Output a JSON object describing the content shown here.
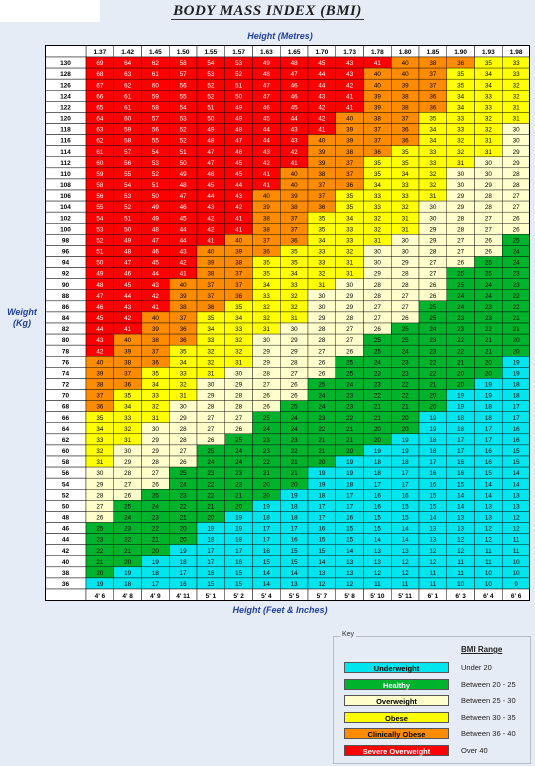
{
  "title": "BODY MASS INDEX (BMI)",
  "x_top_label": "Height (Metres)",
  "x_bottom_label": "Height (Feet & Inches)",
  "y_label_line1": "Weight",
  "y_label_line2": "(Kg)",
  "key": {
    "caption": "Key",
    "header": "BMI Range",
    "items": [
      {
        "label": "Underweight",
        "range": "Under 20",
        "color": "#00e5ee",
        "text_color": "#000000"
      },
      {
        "label": "Healthy",
        "range": "Between 20 - 25",
        "color": "#00b32d",
        "text_color": "#ffffff"
      },
      {
        "label": "Overweight",
        "range": "Between 25 - 30",
        "color": "#ffffcc",
        "text_color": "#000000"
      },
      {
        "label": "Obese",
        "range": "Between 30 - 35",
        "color": "#ffff00",
        "text_color": "#000000"
      },
      {
        "label": "Clinically Obese",
        "range": "Between 36 - 40",
        "color": "#ff8c00",
        "text_color": "#000000"
      },
      {
        "label": "Severe Overweight",
        "range": "Over 40",
        "color": "#ff0000",
        "text_color": "#ffffff"
      }
    ]
  },
  "chart_data": {
    "type": "heatmap",
    "title": "BODY MASS INDEX (BMI)",
    "xlabel_top": "Height (Metres)",
    "xlabel_bottom": "Height (Feet & Inches)",
    "ylabel": "Weight (Kg)",
    "heights_m": [
      "1.37",
      "1.42",
      "1.45",
      "1.50",
      "1.55",
      "1.57",
      "1.63",
      "1.65",
      "1.70",
      "1.73",
      "1.78",
      "1.80",
      "1.85",
      "1.90",
      "1.93",
      "1.98"
    ],
    "heights_ft": [
      "4' 6",
      "4' 8",
      "4' 9",
      "4' 11",
      "5' 1",
      "5' 2",
      "5' 4",
      "5' 5",
      "5' 7",
      "5' 8",
      "5' 10",
      "5' 11",
      "6' 1",
      "6' 3",
      "6' 4",
      "6' 6"
    ],
    "weights_kg": [
      130,
      128,
      126,
      124,
      122,
      120,
      118,
      116,
      114,
      112,
      110,
      108,
      106,
      104,
      102,
      100,
      98,
      96,
      94,
      92,
      90,
      88,
      86,
      84,
      82,
      80,
      78,
      76,
      74,
      72,
      70,
      68,
      66,
      64,
      62,
      60,
      58,
      56,
      54,
      52,
      50,
      48,
      46,
      44,
      42,
      40,
      38,
      36
    ],
    "values": [
      [
        69,
        64,
        62,
        58,
        54,
        53,
        49,
        48,
        45,
        43,
        41,
        40,
        38,
        36,
        35,
        33
      ],
      [
        68,
        63,
        61,
        57,
        53,
        52,
        48,
        47,
        44,
        43,
        40,
        40,
        37,
        35,
        34,
        33
      ],
      [
        67,
        62,
        60,
        56,
        52,
        51,
        47,
        46,
        44,
        42,
        40,
        39,
        37,
        35,
        34,
        32
      ],
      [
        66,
        61,
        59,
        55,
        52,
        50,
        47,
        46,
        43,
        41,
        39,
        38,
        36,
        34,
        33,
        32
      ],
      [
        65,
        61,
        58,
        54,
        51,
        49,
        46,
        45,
        42,
        41,
        39,
        38,
        36,
        34,
        33,
        31
      ],
      [
        64,
        60,
        57,
        53,
        50,
        49,
        45,
        44,
        42,
        40,
        38,
        37,
        35,
        33,
        32,
        31
      ],
      [
        63,
        59,
        56,
        52,
        49,
        48,
        44,
        43,
        41,
        39,
        37,
        36,
        34,
        33,
        32,
        30
      ],
      [
        62,
        58,
        55,
        52,
        48,
        47,
        44,
        43,
        40,
        39,
        37,
        36,
        34,
        32,
        31,
        30
      ],
      [
        61,
        57,
        54,
        51,
        47,
        46,
        43,
        42,
        39,
        38,
        36,
        35,
        33,
        32,
        31,
        29
      ],
      [
        60,
        56,
        53,
        50,
        47,
        45,
        42,
        41,
        39,
        37,
        35,
        35,
        33,
        31,
        30,
        29
      ],
      [
        59,
        55,
        52,
        49,
        46,
        45,
        41,
        40,
        38,
        37,
        35,
        34,
        32,
        30,
        30,
        28
      ],
      [
        58,
        54,
        51,
        48,
        45,
        44,
        41,
        40,
        37,
        36,
        34,
        33,
        32,
        30,
        29,
        28
      ],
      [
        56,
        53,
        50,
        47,
        44,
        43,
        40,
        39,
        37,
        35,
        33,
        33,
        31,
        29,
        28,
        27
      ],
      [
        55,
        52,
        49,
        46,
        43,
        42,
        39,
        38,
        36,
        35,
        33,
        32,
        30,
        29,
        28,
        27
      ],
      [
        54,
        51,
        49,
        45,
        42,
        41,
        38,
        37,
        35,
        34,
        32,
        31,
        30,
        28,
        27,
        26
      ],
      [
        53,
        50,
        48,
        44,
        42,
        41,
        38,
        37,
        35,
        33,
        32,
        31,
        29,
        28,
        27,
        26
      ],
      [
        52,
        49,
        47,
        44,
        41,
        40,
        37,
        36,
        34,
        33,
        31,
        30,
        29,
        27,
        26,
        25
      ],
      [
        51,
        48,
        46,
        43,
        40,
        39,
        36,
        35,
        33,
        32,
        30,
        30,
        28,
        27,
        26,
        24
      ],
      [
        50,
        47,
        45,
        42,
        39,
        38,
        35,
        35,
        33,
        31,
        30,
        29,
        27,
        26,
        25,
        24
      ],
      [
        49,
        46,
        44,
        41,
        38,
        37,
        35,
        34,
        32,
        31,
        29,
        28,
        27,
        25,
        25,
        23
      ],
      [
        48,
        45,
        43,
        40,
        37,
        37,
        34,
        33,
        31,
        30,
        28,
        28,
        26,
        25,
        24,
        23
      ],
      [
        47,
        44,
        42,
        39,
        37,
        36,
        33,
        32,
        30,
        29,
        28,
        27,
        26,
        24,
        24,
        22
      ],
      [
        46,
        43,
        41,
        38,
        36,
        35,
        32,
        32,
        30,
        29,
        27,
        27,
        25,
        24,
        23,
        22
      ],
      [
        45,
        42,
        40,
        37,
        35,
        34,
        32,
        31,
        29,
        28,
        27,
        26,
        25,
        23,
        23,
        21
      ],
      [
        44,
        41,
        39,
        36,
        34,
        33,
        31,
        30,
        28,
        27,
        26,
        25,
        24,
        23,
        22,
        21
      ],
      [
        43,
        40,
        38,
        36,
        33,
        32,
        30,
        29,
        28,
        27,
        25,
        25,
        23,
        22,
        21,
        20
      ],
      [
        42,
        39,
        37,
        35,
        32,
        32,
        29,
        29,
        27,
        26,
        25,
        24,
        23,
        22,
        21,
        20
      ],
      [
        40,
        38,
        36,
        34,
        32,
        31,
        29,
        28,
        26,
        25,
        24,
        23,
        22,
        21,
        20,
        19
      ],
      [
        39,
        37,
        35,
        33,
        31,
        30,
        28,
        27,
        26,
        25,
        23,
        23,
        22,
        20,
        20,
        19
      ],
      [
        38,
        36,
        34,
        32,
        30,
        29,
        27,
        26,
        25,
        24,
        23,
        22,
        21,
        20,
        19,
        18
      ],
      [
        37,
        35,
        33,
        31,
        29,
        28,
        26,
        26,
        24,
        23,
        22,
        22,
        20,
        19,
        19,
        18
      ],
      [
        36,
        34,
        32,
        30,
        28,
        28,
        26,
        25,
        24,
        23,
        21,
        21,
        20,
        19,
        18,
        17
      ],
      [
        35,
        33,
        31,
        29,
        27,
        27,
        25,
        24,
        23,
        22,
        21,
        20,
        19,
        18,
        18,
        17
      ],
      [
        34,
        32,
        30,
        28,
        27,
        26,
        24,
        24,
        22,
        21,
        20,
        20,
        19,
        18,
        17,
        16
      ],
      [
        33,
        31,
        29,
        28,
        26,
        25,
        23,
        23,
        21,
        21,
        20,
        19,
        18,
        17,
        17,
        16
      ],
      [
        32,
        30,
        29,
        27,
        25,
        24,
        23,
        22,
        21,
        20,
        19,
        19,
        18,
        17,
        16,
        15
      ],
      [
        31,
        29,
        28,
        26,
        24,
        24,
        22,
        21,
        20,
        19,
        18,
        18,
        17,
        16,
        16,
        15
      ],
      [
        30,
        28,
        27,
        25,
        23,
        23,
        21,
        21,
        19,
        19,
        18,
        17,
        16,
        16,
        15,
        14
      ],
      [
        29,
        27,
        26,
        24,
        22,
        22,
        20,
        20,
        19,
        18,
        17,
        17,
        16,
        15,
        14,
        14
      ],
      [
        28,
        26,
        25,
        23,
        22,
        21,
        20,
        19,
        18,
        17,
        16,
        16,
        15,
        14,
        14,
        13
      ],
      [
        27,
        25,
        24,
        22,
        21,
        20,
        19,
        18,
        17,
        17,
        16,
        15,
        15,
        14,
        13,
        13
      ],
      [
        26,
        24,
        23,
        21,
        20,
        19,
        18,
        18,
        17,
        16,
        15,
        15,
        14,
        13,
        13,
        12
      ],
      [
        25,
        23,
        22,
        20,
        19,
        19,
        17,
        17,
        16,
        15,
        15,
        14,
        13,
        13,
        12,
        12
      ],
      [
        23,
        22,
        21,
        20,
        18,
        18,
        17,
        16,
        15,
        15,
        14,
        14,
        13,
        12,
        12,
        11
      ],
      [
        22,
        21,
        20,
        19,
        17,
        17,
        16,
        15,
        15,
        14,
        13,
        13,
        12,
        12,
        11,
        11
      ],
      [
        21,
        20,
        19,
        18,
        17,
        16,
        15,
        15,
        14,
        13,
        13,
        12,
        12,
        11,
        11,
        10
      ],
      [
        20,
        19,
        18,
        17,
        16,
        15,
        14,
        14,
        13,
        13,
        12,
        12,
        11,
        11,
        10,
        10
      ],
      [
        19,
        18,
        17,
        16,
        15,
        15,
        14,
        13,
        12,
        12,
        11,
        11,
        11,
        10,
        10,
        9
      ]
    ],
    "color_scale": [
      {
        "min": 0,
        "max": 19,
        "color": "#00e5ee",
        "text_color": "#000000"
      },
      {
        "min": 20,
        "max": 25,
        "color": "#00b32d",
        "text_color": "#000000"
      },
      {
        "min": 26,
        "max": 30,
        "color": "#ffffcc",
        "text_color": "#000000"
      },
      {
        "min": 31,
        "max": 35,
        "color": "#ffff00",
        "text_color": "#000000"
      },
      {
        "min": 36,
        "max": 40,
        "color": "#ff8c00",
        "text_color": "#000000"
      },
      {
        "min": 41,
        "max": 999,
        "color": "#ff0000",
        "text_color": "#ffffff"
      }
    ]
  }
}
